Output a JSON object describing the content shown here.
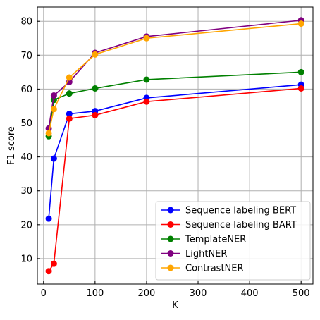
{
  "chart_data": {
    "type": "line",
    "title": "",
    "xlabel": "K",
    "ylabel": "F1 score",
    "xlim": [
      -12,
      523
    ],
    "ylim": [
      2.5,
      84.2
    ],
    "xticks": [
      0,
      100,
      200,
      300,
      400,
      500
    ],
    "yticks": [
      10,
      20,
      30,
      40,
      50,
      60,
      70,
      80
    ],
    "grid": true,
    "legend_position": "lower-right",
    "x": [
      10,
      20,
      50,
      100,
      200,
      500
    ],
    "series": [
      {
        "name": "Sequence labeling BERT",
        "color": "#0000ff",
        "values": [
          21.8,
          39.5,
          52.7,
          53.5,
          57.4,
          61.3
        ]
      },
      {
        "name": "Sequence labeling BART",
        "color": "#ff0000",
        "values": [
          6.3,
          8.5,
          51.3,
          52.3,
          56.3,
          60.2
        ]
      },
      {
        "name": "TemplateNER",
        "color": "#008000",
        "values": [
          46.1,
          56.8,
          58.7,
          60.2,
          62.8,
          65.0
        ]
      },
      {
        "name": "LightNER",
        "color": "#800080",
        "values": [
          48.4,
          58.1,
          62.1,
          70.7,
          75.5,
          80.3
        ]
      },
      {
        "name": "ContrastNER",
        "color": "#ffa500",
        "values": [
          47.0,
          54.1,
          63.4,
          70.2,
          75.0,
          79.3
        ]
      }
    ]
  }
}
